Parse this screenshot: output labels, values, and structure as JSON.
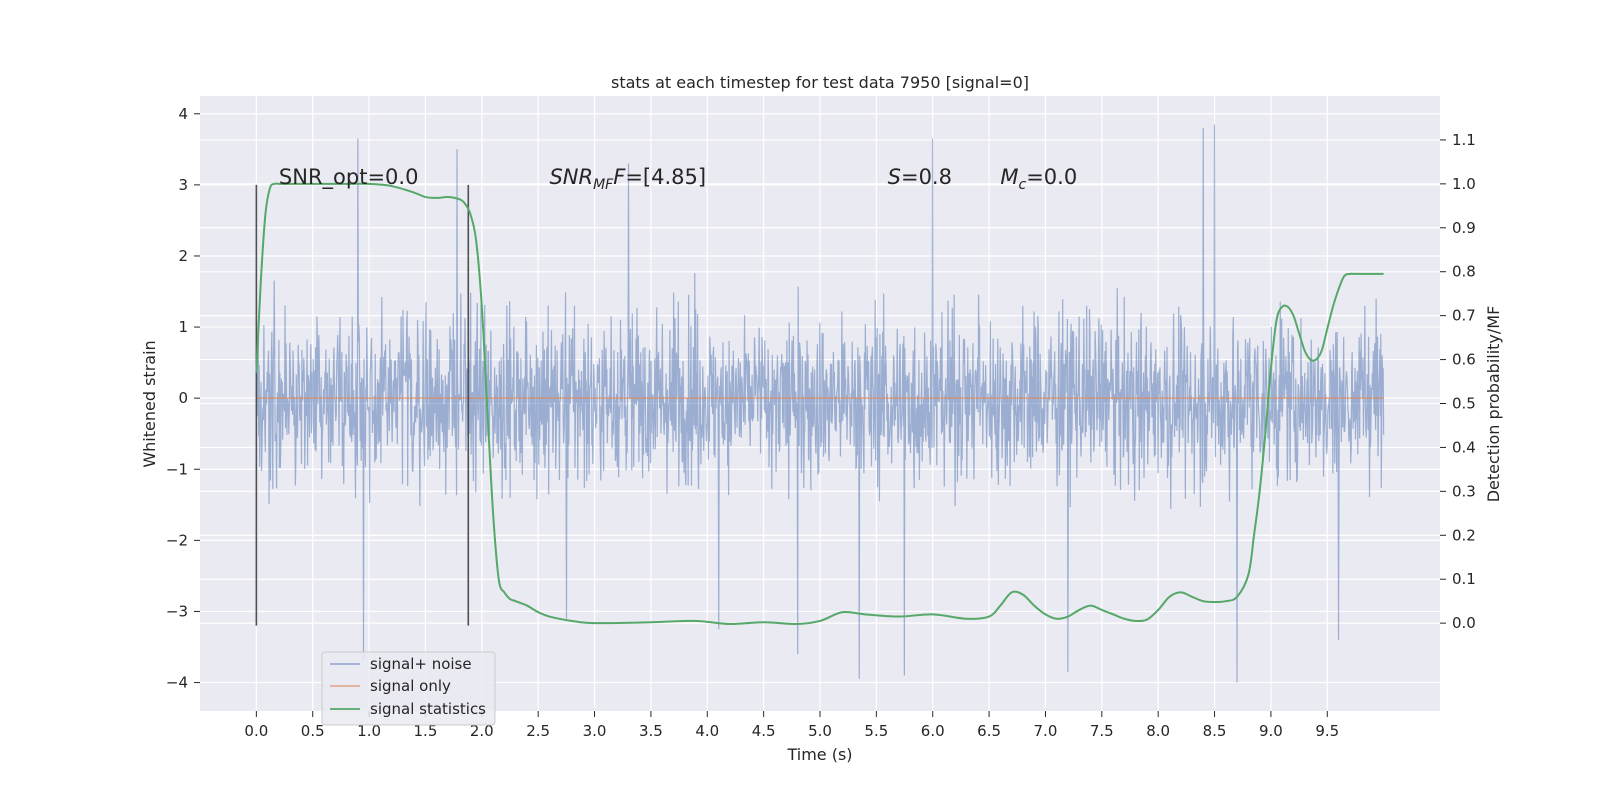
{
  "chart_data": {
    "type": "line",
    "title": "stats at each timestep for test data 7950 [signal=0]",
    "xlabel": "Time (s)",
    "ylabel_left": "Whitened strain",
    "ylabel_right": "Detection probability/MF",
    "xlim": [
      -0.5,
      10.5
    ],
    "ylim_left": [
      -4.4,
      4.25
    ],
    "ylim_right": [
      -0.2,
      1.2
    ],
    "x_ticks": [
      0.0,
      0.5,
      1.0,
      1.5,
      2.0,
      2.5,
      3.0,
      3.5,
      4.0,
      4.5,
      5.0,
      5.5,
      6.0,
      6.5,
      7.0,
      7.5,
      8.0,
      8.5,
      9.0,
      9.5
    ],
    "x_tick_labels": [
      "0.0",
      "0.5",
      "1.0",
      "1.5",
      "2.0",
      "2.5",
      "3.0",
      "3.5",
      "4.0",
      "4.5",
      "5.0",
      "5.5",
      "6.0",
      "6.5",
      "7.0",
      "7.5",
      "8.0",
      "8.5",
      "9.0",
      "9.5"
    ],
    "y_left_ticks": [
      -4,
      -3,
      -2,
      -1,
      0,
      1,
      2,
      3,
      4
    ],
    "y_left_tick_labels": [
      "−4",
      "−3",
      "−2",
      "−1",
      "0",
      "1",
      "2",
      "3",
      "4"
    ],
    "y_right_ticks": [
      0.0,
      0.1,
      0.2,
      0.3,
      0.4,
      0.5,
      0.6,
      0.7,
      0.8,
      0.9,
      1.0,
      1.1
    ],
    "y_right_tick_labels": [
      "0.0",
      "0.1",
      "0.2",
      "0.3",
      "0.4",
      "0.5",
      "0.6",
      "0.7",
      "0.8",
      "0.9",
      "1.0",
      "1.1"
    ],
    "grid": true,
    "legend_position": "lower-left",
    "series": [
      {
        "name": "signal+ noise",
        "axis": "left",
        "color": "#4c72b0",
        "description_values": {
          "x_range": [
            0.0,
            10.0
          ],
          "typical_envelope": [
            -1.8,
            1.8
          ],
          "peaks": [
            [
              0.9,
              3.65
            ],
            [
              1.78,
              3.5
            ],
            [
              3.3,
              3.3
            ],
            [
              5.35,
              -3.95
            ],
            [
              6.0,
              3.65
            ],
            [
              8.4,
              3.8
            ],
            [
              8.5,
              3.85
            ],
            [
              8.7,
              -4.0
            ],
            [
              0.95,
              -3.7
            ],
            [
              2.75,
              -3.1
            ],
            [
              4.1,
              -3.25
            ],
            [
              4.8,
              -3.6
            ],
            [
              5.75,
              -3.9
            ],
            [
              7.2,
              -3.85
            ],
            [
              9.6,
              -3.4
            ]
          ]
        }
      },
      {
        "name": "signal only",
        "axis": "left",
        "color": "#dd8452",
        "x": [
          0.0,
          10.0
        ],
        "y": [
          0.0,
          0.0
        ]
      },
      {
        "name": "signal statistics",
        "axis": "right",
        "color": "#55a868",
        "x": [
          0.0,
          0.04,
          0.08,
          0.12,
          0.16,
          0.2,
          0.3,
          0.5,
          0.8,
          1.0,
          1.2,
          1.4,
          1.5,
          1.6,
          1.7,
          1.8,
          1.85,
          1.9,
          1.95,
          2.0,
          2.05,
          2.1,
          2.15,
          2.2,
          2.25,
          2.3,
          2.4,
          2.5,
          2.6,
          2.8,
          3.0,
          3.5,
          3.9,
          4.2,
          4.5,
          4.8,
          5.0,
          5.2,
          5.4,
          5.7,
          6.0,
          6.3,
          6.5,
          6.6,
          6.7,
          6.8,
          6.9,
          7.0,
          7.1,
          7.2,
          7.3,
          7.4,
          7.5,
          7.6,
          7.7,
          7.8,
          7.9,
          8.0,
          8.1,
          8.2,
          8.3,
          8.4,
          8.5,
          8.6,
          8.7,
          8.8,
          8.85,
          8.9,
          8.95,
          9.0,
          9.05,
          9.1,
          9.15,
          9.2,
          9.25,
          9.3,
          9.35,
          9.4,
          9.45,
          9.5,
          9.55,
          9.6,
          9.65,
          9.7,
          9.75,
          9.8,
          9.85,
          9.9,
          9.95,
          10.0
        ],
        "y": [
          0.57,
          0.78,
          0.93,
          0.99,
          1.0,
          1.0,
          1.0,
          1.0,
          1.0,
          1.0,
          0.995,
          0.98,
          0.97,
          0.968,
          0.97,
          0.965,
          0.955,
          0.93,
          0.87,
          0.72,
          0.48,
          0.25,
          0.1,
          0.07,
          0.055,
          0.05,
          0.04,
          0.025,
          0.015,
          0.005,
          0.0,
          0.002,
          0.005,
          -0.002,
          0.002,
          -0.002,
          0.005,
          0.025,
          0.02,
          0.015,
          0.02,
          0.01,
          0.015,
          0.04,
          0.07,
          0.065,
          0.04,
          0.02,
          0.01,
          0.015,
          0.03,
          0.04,
          0.03,
          0.02,
          0.01,
          0.005,
          0.008,
          0.03,
          0.06,
          0.07,
          0.06,
          0.05,
          0.048,
          0.05,
          0.06,
          0.11,
          0.2,
          0.3,
          0.43,
          0.58,
          0.69,
          0.72,
          0.72,
          0.7,
          0.66,
          0.62,
          0.6,
          0.6,
          0.62,
          0.67,
          0.72,
          0.76,
          0.79,
          0.795,
          0.795,
          0.795,
          0.795,
          0.795,
          0.795,
          0.795
        ]
      }
    ],
    "vertical_markers": [
      {
        "x": 0.0,
        "y_range": [
          -3.2,
          3.0
        ]
      },
      {
        "x": 1.88,
        "y_range": [
          -3.2,
          3.0
        ]
      }
    ],
    "annotations": [
      {
        "id": "snr-opt",
        "text": "SNR_opt=0.0",
        "x": 0.2,
        "y": 3.0
      },
      {
        "id": "snr-mf",
        "text_main": "SNR",
        "text_sub": "MF",
        "text_tail": "=[4.85]",
        "x": 2.6,
        "y": 3.0
      },
      {
        "id": "s",
        "text_main": "S",
        "text_tail": "=0.8",
        "x": 5.6,
        "y": 3.0
      },
      {
        "id": "mc",
        "text_main": "M",
        "text_sub": "c",
        "text_tail": "=0.0",
        "x": 6.6,
        "y": 3.0
      }
    ],
    "legend": [
      "signal+ noise",
      "signal only",
      "signal statistics"
    ]
  }
}
